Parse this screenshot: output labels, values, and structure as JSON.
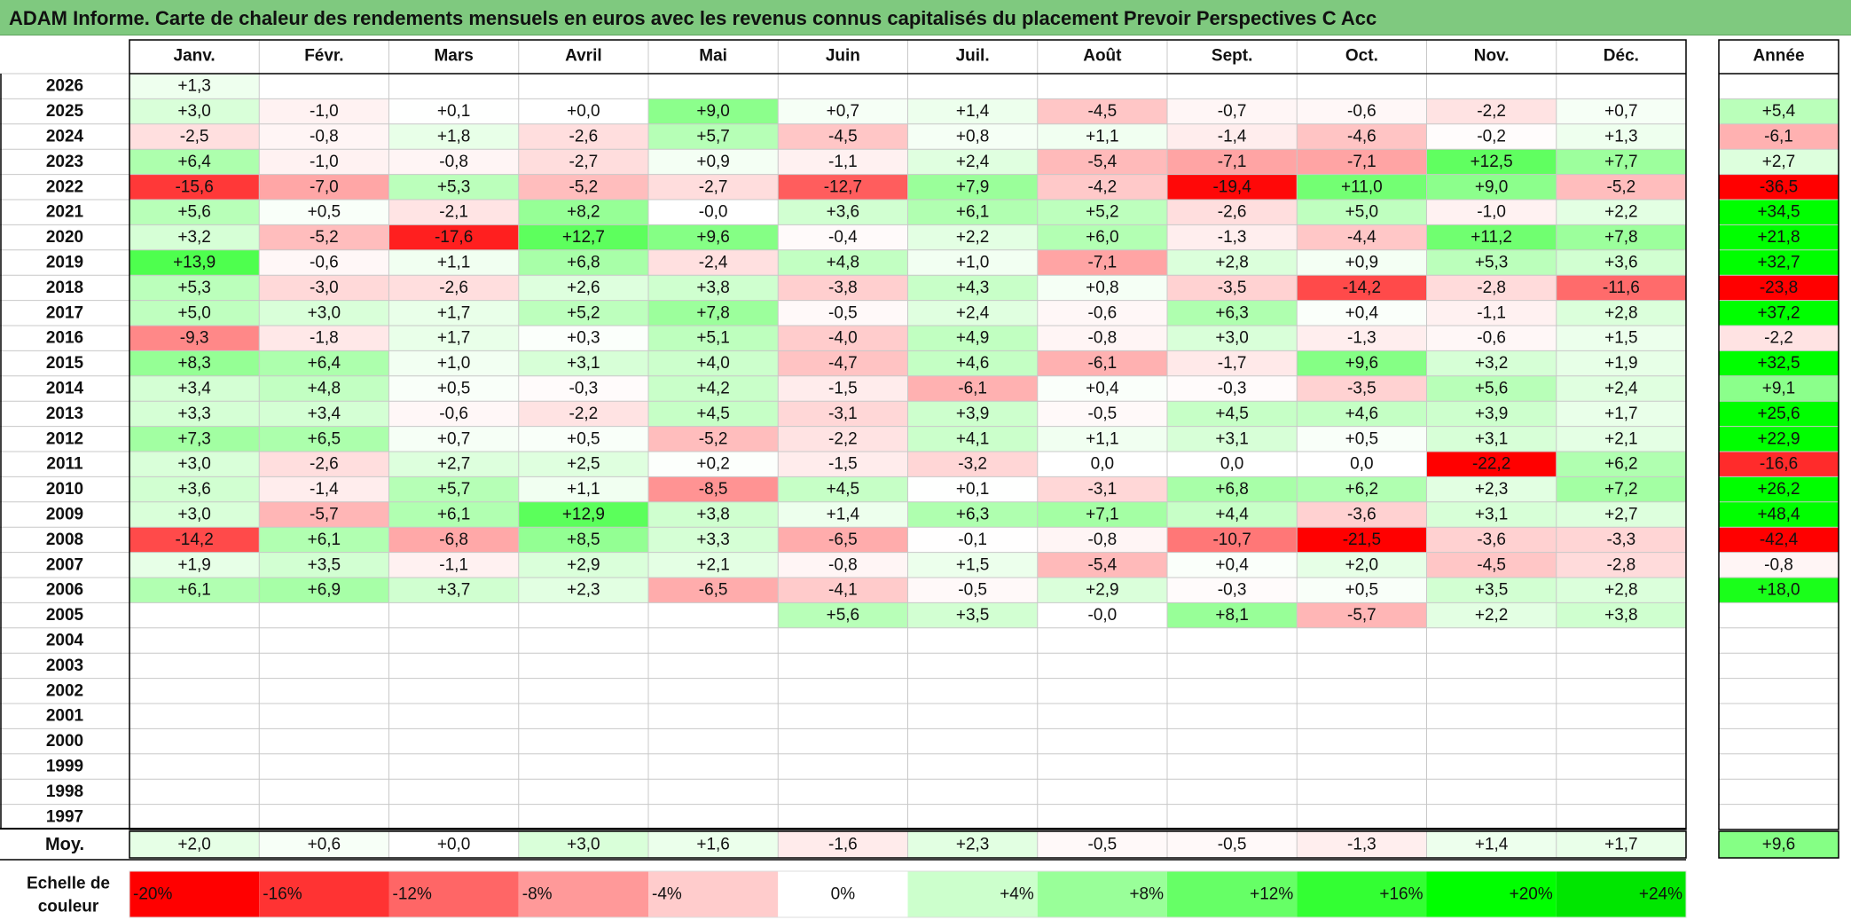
{
  "title": "ADAM Informe. Carte de chaleur des rendements mensuels en euros avec les revenus connus capitalisés du placement Prevoir Perspectives C Acc",
  "chart_data": {
    "type": "heatmap",
    "title": "ADAM Informe. Carte de chaleur des rendements mensuels en euros avec les revenus connus capitalisés du placement Prevoir Perspectives C Acc",
    "columns": [
      "Janv.",
      "Févr.",
      "Mars",
      "Avril",
      "Mai",
      "Juin",
      "Juil.",
      "Août",
      "Sept.",
      "Oct.",
      "Nov.",
      "Déc."
    ],
    "year_header": "Année",
    "rows": [
      {
        "year": "2026",
        "months": [
          "+1,3",
          "",
          "",
          "",
          "",
          "",
          "",
          "",
          "",
          "",
          "",
          ""
        ],
        "annual": ""
      },
      {
        "year": "2025",
        "months": [
          "+3,0",
          "-1,0",
          "+0,1",
          "+0,0",
          "+9,0",
          "+0,7",
          "+1,4",
          "-4,5",
          "-0,7",
          "-0,6",
          "-2,2",
          "+0,7"
        ],
        "annual": "+5,4"
      },
      {
        "year": "2024",
        "months": [
          "-2,5",
          "-0,8",
          "+1,8",
          "-2,6",
          "+5,7",
          "-4,5",
          "+0,8",
          "+1,1",
          "-1,4",
          "-4,6",
          "-0,2",
          "+1,3"
        ],
        "annual": "-6,1"
      },
      {
        "year": "2023",
        "months": [
          "+6,4",
          "-1,0",
          "-0,8",
          "-2,7",
          "+0,9",
          "-1,1",
          "+2,4",
          "-5,4",
          "-7,1",
          "-7,1",
          "+12,5",
          "+7,7"
        ],
        "annual": "+2,7"
      },
      {
        "year": "2022",
        "months": [
          "-15,6",
          "-7,0",
          "+5,3",
          "-5,2",
          "-2,7",
          "-12,7",
          "+7,9",
          "-4,2",
          "-19,4",
          "+11,0",
          "+9,0",
          "-5,2"
        ],
        "annual": "-36,5"
      },
      {
        "year": "2021",
        "months": [
          "+5,6",
          "+0,5",
          "-2,1",
          "+8,2",
          "-0,0",
          "+3,6",
          "+6,1",
          "+5,2",
          "-2,6",
          "+5,0",
          "-1,0",
          "+2,2"
        ],
        "annual": "+34,5"
      },
      {
        "year": "2020",
        "months": [
          "+3,2",
          "-5,2",
          "-17,6",
          "+12,7",
          "+9,6",
          "-0,4",
          "+2,2",
          "+6,0",
          "-1,3",
          "-4,4",
          "+11,2",
          "+7,8"
        ],
        "annual": "+21,8"
      },
      {
        "year": "2019",
        "months": [
          "+13,9",
          "-0,6",
          "+1,1",
          "+6,8",
          "-2,4",
          "+4,8",
          "+1,0",
          "-7,1",
          "+2,8",
          "+0,9",
          "+5,3",
          "+3,6"
        ],
        "annual": "+32,7"
      },
      {
        "year": "2018",
        "months": [
          "+5,3",
          "-3,0",
          "-2,6",
          "+2,6",
          "+3,8",
          "-3,8",
          "+4,3",
          "+0,8",
          "-3,5",
          "-14,2",
          "-2,8",
          "-11,6"
        ],
        "annual": "-23,8"
      },
      {
        "year": "2017",
        "months": [
          "+5,0",
          "+3,0",
          "+1,7",
          "+5,2",
          "+7,8",
          "-0,5",
          "+2,4",
          "-0,6",
          "+6,3",
          "+0,4",
          "-1,1",
          "+2,8"
        ],
        "annual": "+37,2"
      },
      {
        "year": "2016",
        "months": [
          "-9,3",
          "-1,8",
          "+1,7",
          "+0,3",
          "+5,1",
          "-4,0",
          "+4,9",
          "-0,8",
          "+3,0",
          "-1,3",
          "-0,6",
          "+1,5"
        ],
        "annual": "-2,2"
      },
      {
        "year": "2015",
        "months": [
          "+8,3",
          "+6,4",
          "+1,0",
          "+3,1",
          "+4,0",
          "-4,7",
          "+4,6",
          "-6,1",
          "-1,7",
          "+9,6",
          "+3,2",
          "+1,9"
        ],
        "annual": "+32,5"
      },
      {
        "year": "2014",
        "months": [
          "+3,4",
          "+4,8",
          "+0,5",
          "-0,3",
          "+4,2",
          "-1,5",
          "-6,1",
          "+0,4",
          "-0,3",
          "-3,5",
          "+5,6",
          "+2,4"
        ],
        "annual": "+9,1"
      },
      {
        "year": "2013",
        "months": [
          "+3,3",
          "+3,4",
          "-0,6",
          "-2,2",
          "+4,5",
          "-3,1",
          "+3,9",
          "-0,5",
          "+4,5",
          "+4,6",
          "+3,9",
          "+1,7"
        ],
        "annual": "+25,6"
      },
      {
        "year": "2012",
        "months": [
          "+7,3",
          "+6,5",
          "+0,7",
          "+0,5",
          "-5,2",
          "-2,2",
          "+4,1",
          "+1,1",
          "+3,1",
          "+0,5",
          "+3,1",
          "+2,1"
        ],
        "annual": "+22,9"
      },
      {
        "year": "2011",
        "months": [
          "+3,0",
          "-2,6",
          "+2,7",
          "+2,5",
          "+0,2",
          "-1,5",
          "-3,2",
          "0,0",
          "0,0",
          "0,0",
          "-22,2",
          "+6,2"
        ],
        "annual": "-16,6"
      },
      {
        "year": "2010",
        "months": [
          "+3,6",
          "-1,4",
          "+5,7",
          "+1,1",
          "-8,5",
          "+4,5",
          "+0,1",
          "-3,1",
          "+6,8",
          "+6,2",
          "+2,3",
          "+7,2"
        ],
        "annual": "+26,2"
      },
      {
        "year": "2009",
        "months": [
          "+3,0",
          "-5,7",
          "+6,1",
          "+12,9",
          "+3,8",
          "+1,4",
          "+6,3",
          "+7,1",
          "+4,4",
          "-3,6",
          "+3,1",
          "+2,7"
        ],
        "annual": "+48,4"
      },
      {
        "year": "2008",
        "months": [
          "-14,2",
          "+6,1",
          "-6,8",
          "+8,5",
          "+3,3",
          "-6,5",
          "-0,1",
          "-0,8",
          "-10,7",
          "-21,5",
          "-3,6",
          "-3,3"
        ],
        "annual": "-42,4"
      },
      {
        "year": "2007",
        "months": [
          "+1,9",
          "+3,5",
          "-1,1",
          "+2,9",
          "+2,1",
          "-0,8",
          "+1,5",
          "-5,4",
          "+0,4",
          "+2,0",
          "-4,5",
          "-2,8"
        ],
        "annual": "-0,8"
      },
      {
        "year": "2006",
        "months": [
          "+6,1",
          "+6,9",
          "+3,7",
          "+2,3",
          "-6,5",
          "-4,1",
          "-0,5",
          "+2,9",
          "-0,3",
          "+0,5",
          "+3,5",
          "+2,8"
        ],
        "annual": "+18,0"
      },
      {
        "year": "2005",
        "months": [
          "",
          "",
          "",
          "",
          "",
          "+5,6",
          "+3,5",
          "-0,0",
          "+8,1",
          "-5,7",
          "+2,2",
          "+3,8"
        ],
        "annual": ""
      },
      {
        "year": "2004",
        "months": [
          "",
          "",
          "",
          "",
          "",
          "",
          "",
          "",
          "",
          "",
          "",
          ""
        ],
        "annual": ""
      },
      {
        "year": "2003",
        "months": [
          "",
          "",
          "",
          "",
          "",
          "",
          "",
          "",
          "",
          "",
          "",
          ""
        ],
        "annual": ""
      },
      {
        "year": "2002",
        "months": [
          "",
          "",
          "",
          "",
          "",
          "",
          "",
          "",
          "",
          "",
          "",
          ""
        ],
        "annual": ""
      },
      {
        "year": "2001",
        "months": [
          "",
          "",
          "",
          "",
          "",
          "",
          "",
          "",
          "",
          "",
          "",
          ""
        ],
        "annual": ""
      },
      {
        "year": "2000",
        "months": [
          "",
          "",
          "",
          "",
          "",
          "",
          "",
          "",
          "",
          "",
          "",
          ""
        ],
        "annual": ""
      },
      {
        "year": "1999",
        "months": [
          "",
          "",
          "",
          "",
          "",
          "",
          "",
          "",
          "",
          "",
          "",
          ""
        ],
        "annual": ""
      },
      {
        "year": "1998",
        "months": [
          "",
          "",
          "",
          "",
          "",
          "",
          "",
          "",
          "",
          "",
          "",
          ""
        ],
        "annual": ""
      },
      {
        "year": "1997",
        "months": [
          "",
          "",
          "",
          "",
          "",
          "",
          "",
          "",
          "",
          "",
          "",
          ""
        ],
        "annual": ""
      }
    ],
    "average": {
      "label": "Moy.",
      "months": [
        "+2,0",
        "+0,6",
        "+0,0",
        "+3,0",
        "+1,6",
        "-1,6",
        "+2,3",
        "-0,5",
        "-0,5",
        "-1,3",
        "+1,4",
        "+1,7"
      ],
      "annual": "+9,6"
    },
    "scale": {
      "label_line1": "Echelle de",
      "label_line2": "couleur",
      "stops": [
        {
          "label": "-20%",
          "value": -20,
          "color": "#ff0000"
        },
        {
          "label": "-16%",
          "value": -16,
          "color": "#ff3333"
        },
        {
          "label": "-12%",
          "value": -12,
          "color": "#ff6666"
        },
        {
          "label": "-8%",
          "value": -8,
          "color": "#ff9999"
        },
        {
          "label": "-4%",
          "value": -4,
          "color": "#ffcccc"
        },
        {
          "label": "0%",
          "value": 0,
          "color": "#ffffff"
        },
        {
          "label": "+4%",
          "value": 4,
          "color": "#ccffcc"
        },
        {
          "label": "+8%",
          "value": 8,
          "color": "#99ff99"
        },
        {
          "label": "+12%",
          "value": 12,
          "color": "#66ff66"
        },
        {
          "label": "+16%",
          "value": 16,
          "color": "#33ff33"
        },
        {
          "label": "+20%",
          "value": 20,
          "color": "#00ff00"
        },
        {
          "label": "+24%",
          "value": 24,
          "color": "#00e600"
        }
      ]
    },
    "colors": {
      "title_bar": "#7fc97f",
      "grid": "#c8c8c8",
      "border": "#000000"
    }
  }
}
